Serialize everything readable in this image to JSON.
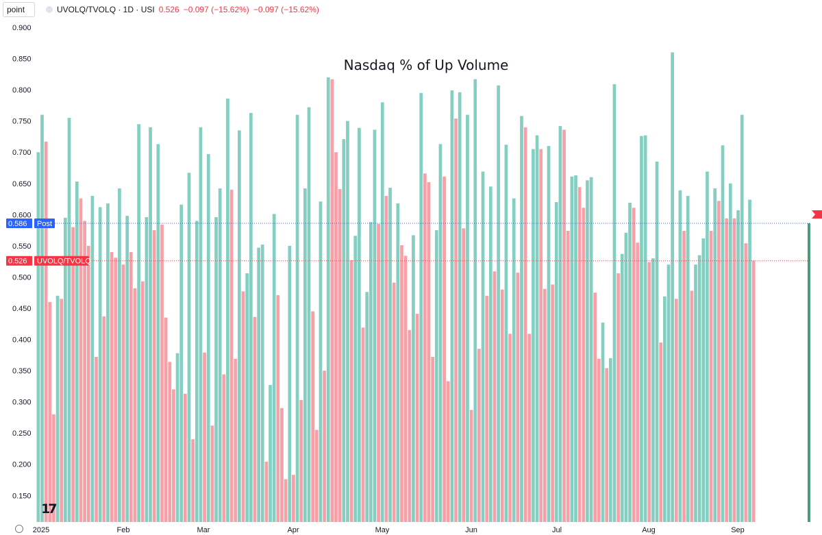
{
  "header": {
    "unit_selector": "point",
    "symbol": "UVOLQ/TVOLQ · 1D · USI",
    "last": "0.526",
    "change": "−0.097 (−15.62%)",
    "change2": "−0.097 (−15.62%)"
  },
  "price_labels": {
    "post_value": "0.586",
    "post_tag": "Post",
    "series_value": "0.526",
    "series_tag": "UVOLQ/TVOLQ"
  },
  "logo_text": "17",
  "colors": {
    "up": "#84cfc1",
    "down": "#f7a0a8",
    "post_bg": "#2962ff",
    "series_bg": "#f23645",
    "last_bar": "#4c9b7a",
    "accent_flag": "#f23645"
  },
  "chart_data": {
    "type": "bar",
    "title": "Nasdaq % of Up Volume",
    "ylim": [
      0.11,
      0.91
    ],
    "yticks": [
      "0.150",
      "0.200",
      "0.250",
      "0.300",
      "0.350",
      "0.400",
      "0.450",
      "0.500",
      "0.550",
      "0.600",
      "0.650",
      "0.700",
      "0.750",
      "0.800",
      "0.850",
      "0.900"
    ],
    "xticks": [
      "2025",
      "Feb",
      "Mar",
      "Apr",
      "May",
      "Jun",
      "Jul",
      "Aug",
      "Sep"
    ],
    "values": [
      0.7,
      0.76,
      0.717,
      0.46,
      0.28,
      0.47,
      0.465,
      0.595,
      0.755,
      0.58,
      0.653,
      0.626,
      0.59,
      0.55,
      0.63,
      0.372,
      0.612,
      0.437,
      0.618,
      0.54,
      0.531,
      0.642,
      0.52,
      0.598,
      0.54,
      0.482,
      0.745,
      0.493,
      0.596,
      0.74,
      0.575,
      0.713,
      0.584,
      0.435,
      0.364,
      0.32,
      0.378,
      0.616,
      0.313,
      0.667,
      0.24,
      0.59,
      0.74,
      0.379,
      0.697,
      0.262,
      0.596,
      0.642,
      0.344,
      0.786,
      0.64,
      0.369,
      0.735,
      0.477,
      0.506,
      0.763,
      0.436,
      0.547,
      0.552,
      0.204,
      0.327,
      0.601,
      0.471,
      0.29,
      0.176,
      0.55,
      0.183,
      0.76,
      0.303,
      0.642,
      0.772,
      0.445,
      0.255,
      0.621,
      0.35,
      0.82,
      0.817,
      0.7,
      0.641,
      0.721,
      0.75,
      0.527,
      0.566,
      0.739,
      0.419,
      0.476,
      0.588,
      0.736,
      0.585,
      0.78,
      0.63,
      0.643,
      0.491,
      0.618,
      0.551,
      0.534,
      0.415,
      0.567,
      0.441,
      0.795,
      0.666,
      0.652,
      0.372,
      0.575,
      0.713,
      0.661,
      0.333,
      0.799,
      0.754,
      0.796,
      0.578,
      0.76,
      0.287,
      0.817,
      0.385,
      0.669,
      0.47,
      0.645,
      0.509,
      0.807,
      0.48,
      0.712,
      0.409,
      0.626,
      0.507,
      0.758,
      0.74,
      0.409,
      0.705,
      0.727,
      0.705,
      0.481,
      0.71,
      0.488,
      0.62,
      0.742,
      0.736,
      0.574,
      0.661,
      0.663,
      0.644,
      0.611,
      0.655,
      0.66,
      0.475,
      0.369,
      0.427,
      0.354,
      0.37,
      0.809,
      0.506,
      0.537,
      0.571,
      0.619,
      0.611,
      0.555,
      0.726,
      0.727,
      0.524,
      0.53,
      0.685,
      0.395,
      0.469,
      0.52,
      0.86,
      0.465,
      0.639,
      0.574,
      0.63,
      0.478,
      0.52,
      0.535,
      0.562,
      0.669,
      0.574,
      0.642,
      0.622,
      0.711,
      0.594,
      0.65,
      0.594,
      0.607,
      0.76,
      0.554,
      0.624,
      0.526,
      0.586
    ],
    "post_value": 0.586,
    "last_value": 0.526
  }
}
